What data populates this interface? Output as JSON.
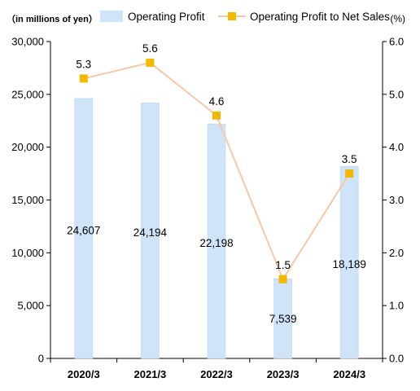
{
  "chart_data": {
    "type": "bar",
    "categories": [
      "2020/3",
      "2021/3",
      "2022/3",
      "2023/3",
      "2024/3"
    ],
    "series": [
      {
        "name": "Operating Profit",
        "type": "bar",
        "axis": "left",
        "values": [
          24607,
          24194,
          22198,
          7539,
          18189
        ],
        "value_labels": [
          "24,607",
          "24,194",
          "22,198",
          "7,539",
          "18,189"
        ]
      },
      {
        "name": "Operating Profit to Net Sales",
        "type": "line",
        "axis": "right",
        "values": [
          5.3,
          5.6,
          4.6,
          1.5,
          3.5
        ],
        "value_labels": [
          "5.3",
          "5.6",
          "4.6",
          "1.5",
          "3.5"
        ]
      }
    ],
    "y_left": {
      "label": "（in millions of yen）",
      "lim": [
        0,
        30000
      ],
      "ticks": [
        0,
        5000,
        10000,
        15000,
        20000,
        25000,
        30000
      ],
      "tick_labels": [
        "0",
        "5,000",
        "10,000",
        "15,000",
        "20,000",
        "25,000",
        "30,000"
      ]
    },
    "y_right": {
      "label": "(%)",
      "lim": [
        0,
        6
      ],
      "ticks": [
        0,
        1,
        2,
        3,
        4,
        5,
        6
      ],
      "tick_labels": [
        "0.0",
        "1.0",
        "2.0",
        "3.0",
        "4.0",
        "5.0",
        "6.0"
      ]
    },
    "legend": "top",
    "grid": false,
    "colors": {
      "bar": "#cfe4f9",
      "bar_edge": "#b7d5f3",
      "line": "#f7c7a6",
      "marker": "#f5b800",
      "axis": "#000000"
    }
  }
}
